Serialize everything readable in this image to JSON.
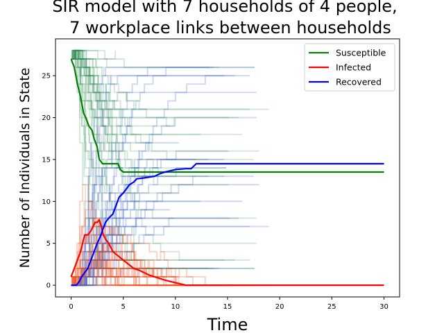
{
  "chart_data": {
    "type": "line",
    "title_lines": [
      "SIR model with 7 households of 4 people,",
      "7 workplace links between households"
    ],
    "xlabel": "Time",
    "ylabel": "Number of Individuals in State",
    "xlim": [
      -1.5,
      31.5
    ],
    "ylim": [
      -1.4,
      29.4
    ],
    "xticks": [
      0,
      5,
      10,
      15,
      20,
      25,
      30
    ],
    "yticks": [
      0,
      5,
      10,
      15,
      20,
      25
    ],
    "grid": false,
    "legend": {
      "placement": "top-right",
      "entries": [
        {
          "label": "Susceptible",
          "color": "#008000"
        },
        {
          "label": "Infected",
          "color": "#ff0000"
        },
        {
          "label": "Recovered",
          "color": "#0000ff"
        }
      ]
    },
    "series": [
      {
        "name": "Susceptible",
        "color": "#008000",
        "x": [
          0,
          0.3,
          0.6,
          0.9,
          1.2,
          1.4,
          1.7,
          2.0,
          2.2,
          2.5,
          2.7,
          2.9,
          3.0,
          3.3,
          3.6,
          4.0,
          4.5,
          4.7,
          5.0,
          6.0,
          7.0,
          8.0,
          9.0,
          10.0,
          12.0,
          15.0,
          20.0,
          25.0,
          30.0
        ],
        "y": [
          27,
          26,
          24,
          22.5,
          20.5,
          20,
          19,
          18.5,
          17.5,
          16.5,
          15,
          14.7,
          14.5,
          14.5,
          14.5,
          14.5,
          14.5,
          13.8,
          13.5,
          13.5,
          13.5,
          13.5,
          13.5,
          13.5,
          13.5,
          13.5,
          13.5,
          13.5,
          13.5
        ]
      },
      {
        "name": "Infected",
        "color": "#ff0000",
        "x": [
          0,
          0.3,
          0.6,
          0.9,
          1.1,
          1.3,
          1.6,
          1.9,
          2.1,
          2.3,
          2.5,
          2.7,
          2.9,
          3.1,
          3.3,
          3.6,
          4.0,
          4.5,
          5.0,
          5.5,
          6.0,
          6.5,
          7.0,
          7.5,
          8.0,
          8.5,
          9.0,
          10.0,
          11.0,
          12.0,
          14.0,
          16.0,
          20.0,
          25.0,
          30.0
        ],
        "y": [
          1,
          2,
          3,
          4,
          5,
          6,
          6,
          6.5,
          7,
          7.5,
          7.5,
          7.8,
          7,
          6,
          5.5,
          5,
          4,
          3.5,
          3,
          2.5,
          2,
          1.8,
          1.5,
          1.2,
          1,
          0.8,
          0.6,
          0.3,
          0,
          0,
          0,
          0,
          0,
          0,
          0
        ]
      },
      {
        "name": "Recovered",
        "color": "#0000ff",
        "x": [
          0,
          0.5,
          0.8,
          1.0,
          1.3,
          1.6,
          1.9,
          2.2,
          2.5,
          2.8,
          3.0,
          3.3,
          3.6,
          4.0,
          4.3,
          4.6,
          5.0,
          5.3,
          5.6,
          6.0,
          6.3,
          7.0,
          8.0,
          8.5,
          9.0,
          10.0,
          11.0,
          11.5,
          12.0,
          13.0,
          15.0,
          20.0,
          25.0,
          30.0
        ],
        "y": [
          0,
          0,
          0.5,
          1,
          1.5,
          2,
          3,
          4,
          5,
          5.8,
          6.5,
          7.5,
          8,
          8.5,
          9.5,
          10.5,
          11,
          11.5,
          12,
          12.3,
          12.7,
          12.8,
          13,
          13.3,
          13.5,
          13.8,
          13.9,
          13.9,
          14.5,
          14.5,
          14.5,
          14.5,
          14.5,
          14.5
        ]
      }
    ]
  }
}
